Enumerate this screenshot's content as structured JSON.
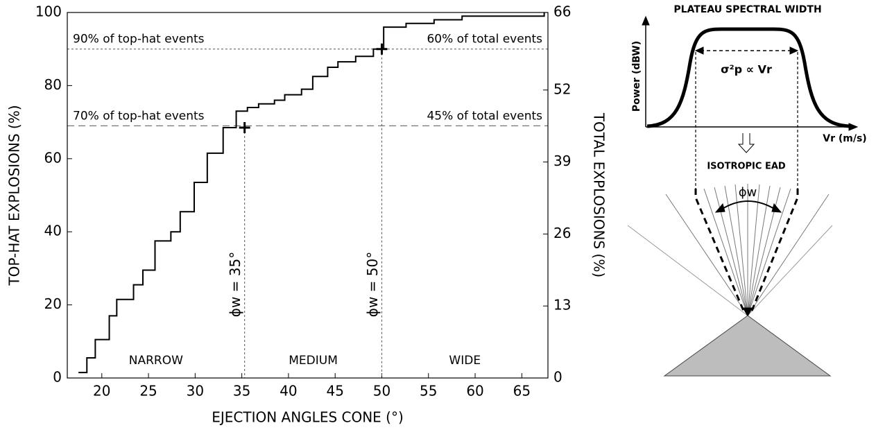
{
  "chart_data": {
    "type": "step",
    "x_label": "EJECTION ANGLES CONE (°)",
    "y_label": "TOP-HAT EXPLOSIONS (%)",
    "y2_label": "TOTAL EXPLOSIONS (%)",
    "xlim": [
      16.3,
      67.8
    ],
    "xticks": [
      20,
      25,
      30,
      35,
      40,
      45,
      50,
      55,
      60,
      65
    ],
    "ylim": [
      0,
      100
    ],
    "yticks": [
      0,
      20,
      40,
      60,
      80,
      100
    ],
    "y2lim": [
      0,
      66
    ],
    "y2ticks": [
      0,
      13,
      26,
      39,
      52,
      66
    ],
    "color": "#000000",
    "x": [
      17.5,
      18.4,
      19.3,
      20.8,
      21.6,
      23.4,
      24.4,
      25.7,
      27.4,
      28.4,
      29.9,
      31.3,
      33.0,
      34.4,
      35.6,
      36.8,
      38.5,
      39.6,
      41.4,
      42.6,
      44.2,
      45.3,
      47.2,
      49.1,
      50.2,
      52.6,
      55.6,
      58.6,
      67.4
    ],
    "values": [
      1.5,
      5.5,
      10.5,
      17,
      21.5,
      25.5,
      29.5,
      37.5,
      40,
      45.5,
      53.5,
      61.5,
      68.5,
      73,
      74,
      75,
      76,
      77.5,
      79,
      82.5,
      85,
      86.5,
      88,
      90,
      96,
      97,
      98,
      99,
      100
    ],
    "hlines": [
      {
        "value": 90,
        "left": "90% of top-hat events",
        "right": "60% of total events"
      },
      {
        "value": 69,
        "left": "70% of top-hat events",
        "right": "45% of total events"
      }
    ],
    "vlines": [
      {
        "value": 35.3,
        "label": "ϕw = 35°"
      },
      {
        "value": 50,
        "label": "ϕw = 50°"
      }
    ],
    "markers": [
      {
        "x": 35.3,
        "y": 68.5
      },
      {
        "x": 50,
        "y": 90
      }
    ],
    "regions": [
      "NARROW",
      "MEDIUM",
      "WIDE"
    ]
  },
  "diagram": {
    "title": "PLATEAU SPECTRAL WIDTH",
    "y_label": "Power (dBW)",
    "x_label": "Vr (m/s)",
    "width_label": "σ²p ∝ Vr",
    "model_label": "ISOTROPIC EAD",
    "angle_label": "ϕw"
  }
}
